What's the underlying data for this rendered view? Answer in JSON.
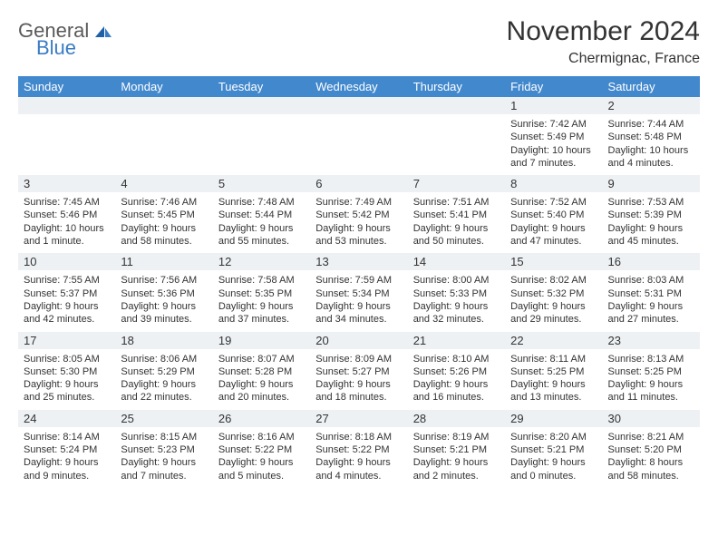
{
  "brand": {
    "line1": "General",
    "line2": "Blue"
  },
  "title": "November 2024",
  "location": "Chermignac, France",
  "theme": {
    "header_bg": "#4288cd",
    "header_fg": "#ffffff",
    "daybar_bg": "#eef1f4",
    "page_bg": "#ffffff",
    "text": "#333333",
    "logo_gray": "#5a5a5a",
    "logo_blue": "#3a7cc4"
  },
  "weekdays": [
    "Sunday",
    "Monday",
    "Tuesday",
    "Wednesday",
    "Thursday",
    "Friday",
    "Saturday"
  ],
  "weeks": [
    [
      null,
      null,
      null,
      null,
      null,
      {
        "n": "1",
        "sunrise": "Sunrise: 7:42 AM",
        "sunset": "Sunset: 5:49 PM",
        "daylight": "Daylight: 10 hours and 7 minutes."
      },
      {
        "n": "2",
        "sunrise": "Sunrise: 7:44 AM",
        "sunset": "Sunset: 5:48 PM",
        "daylight": "Daylight: 10 hours and 4 minutes."
      }
    ],
    [
      {
        "n": "3",
        "sunrise": "Sunrise: 7:45 AM",
        "sunset": "Sunset: 5:46 PM",
        "daylight": "Daylight: 10 hours and 1 minute."
      },
      {
        "n": "4",
        "sunrise": "Sunrise: 7:46 AM",
        "sunset": "Sunset: 5:45 PM",
        "daylight": "Daylight: 9 hours and 58 minutes."
      },
      {
        "n": "5",
        "sunrise": "Sunrise: 7:48 AM",
        "sunset": "Sunset: 5:44 PM",
        "daylight": "Daylight: 9 hours and 55 minutes."
      },
      {
        "n": "6",
        "sunrise": "Sunrise: 7:49 AM",
        "sunset": "Sunset: 5:42 PM",
        "daylight": "Daylight: 9 hours and 53 minutes."
      },
      {
        "n": "7",
        "sunrise": "Sunrise: 7:51 AM",
        "sunset": "Sunset: 5:41 PM",
        "daylight": "Daylight: 9 hours and 50 minutes."
      },
      {
        "n": "8",
        "sunrise": "Sunrise: 7:52 AM",
        "sunset": "Sunset: 5:40 PM",
        "daylight": "Daylight: 9 hours and 47 minutes."
      },
      {
        "n": "9",
        "sunrise": "Sunrise: 7:53 AM",
        "sunset": "Sunset: 5:39 PM",
        "daylight": "Daylight: 9 hours and 45 minutes."
      }
    ],
    [
      {
        "n": "10",
        "sunrise": "Sunrise: 7:55 AM",
        "sunset": "Sunset: 5:37 PM",
        "daylight": "Daylight: 9 hours and 42 minutes."
      },
      {
        "n": "11",
        "sunrise": "Sunrise: 7:56 AM",
        "sunset": "Sunset: 5:36 PM",
        "daylight": "Daylight: 9 hours and 39 minutes."
      },
      {
        "n": "12",
        "sunrise": "Sunrise: 7:58 AM",
        "sunset": "Sunset: 5:35 PM",
        "daylight": "Daylight: 9 hours and 37 minutes."
      },
      {
        "n": "13",
        "sunrise": "Sunrise: 7:59 AM",
        "sunset": "Sunset: 5:34 PM",
        "daylight": "Daylight: 9 hours and 34 minutes."
      },
      {
        "n": "14",
        "sunrise": "Sunrise: 8:00 AM",
        "sunset": "Sunset: 5:33 PM",
        "daylight": "Daylight: 9 hours and 32 minutes."
      },
      {
        "n": "15",
        "sunrise": "Sunrise: 8:02 AM",
        "sunset": "Sunset: 5:32 PM",
        "daylight": "Daylight: 9 hours and 29 minutes."
      },
      {
        "n": "16",
        "sunrise": "Sunrise: 8:03 AM",
        "sunset": "Sunset: 5:31 PM",
        "daylight": "Daylight: 9 hours and 27 minutes."
      }
    ],
    [
      {
        "n": "17",
        "sunrise": "Sunrise: 8:05 AM",
        "sunset": "Sunset: 5:30 PM",
        "daylight": "Daylight: 9 hours and 25 minutes."
      },
      {
        "n": "18",
        "sunrise": "Sunrise: 8:06 AM",
        "sunset": "Sunset: 5:29 PM",
        "daylight": "Daylight: 9 hours and 22 minutes."
      },
      {
        "n": "19",
        "sunrise": "Sunrise: 8:07 AM",
        "sunset": "Sunset: 5:28 PM",
        "daylight": "Daylight: 9 hours and 20 minutes."
      },
      {
        "n": "20",
        "sunrise": "Sunrise: 8:09 AM",
        "sunset": "Sunset: 5:27 PM",
        "daylight": "Daylight: 9 hours and 18 minutes."
      },
      {
        "n": "21",
        "sunrise": "Sunrise: 8:10 AM",
        "sunset": "Sunset: 5:26 PM",
        "daylight": "Daylight: 9 hours and 16 minutes."
      },
      {
        "n": "22",
        "sunrise": "Sunrise: 8:11 AM",
        "sunset": "Sunset: 5:25 PM",
        "daylight": "Daylight: 9 hours and 13 minutes."
      },
      {
        "n": "23",
        "sunrise": "Sunrise: 8:13 AM",
        "sunset": "Sunset: 5:25 PM",
        "daylight": "Daylight: 9 hours and 11 minutes."
      }
    ],
    [
      {
        "n": "24",
        "sunrise": "Sunrise: 8:14 AM",
        "sunset": "Sunset: 5:24 PM",
        "daylight": "Daylight: 9 hours and 9 minutes."
      },
      {
        "n": "25",
        "sunrise": "Sunrise: 8:15 AM",
        "sunset": "Sunset: 5:23 PM",
        "daylight": "Daylight: 9 hours and 7 minutes."
      },
      {
        "n": "26",
        "sunrise": "Sunrise: 8:16 AM",
        "sunset": "Sunset: 5:22 PM",
        "daylight": "Daylight: 9 hours and 5 minutes."
      },
      {
        "n": "27",
        "sunrise": "Sunrise: 8:18 AM",
        "sunset": "Sunset: 5:22 PM",
        "daylight": "Daylight: 9 hours and 4 minutes."
      },
      {
        "n": "28",
        "sunrise": "Sunrise: 8:19 AM",
        "sunset": "Sunset: 5:21 PM",
        "daylight": "Daylight: 9 hours and 2 minutes."
      },
      {
        "n": "29",
        "sunrise": "Sunrise: 8:20 AM",
        "sunset": "Sunset: 5:21 PM",
        "daylight": "Daylight: 9 hours and 0 minutes."
      },
      {
        "n": "30",
        "sunrise": "Sunrise: 8:21 AM",
        "sunset": "Sunset: 5:20 PM",
        "daylight": "Daylight: 8 hours and 58 minutes."
      }
    ]
  ]
}
